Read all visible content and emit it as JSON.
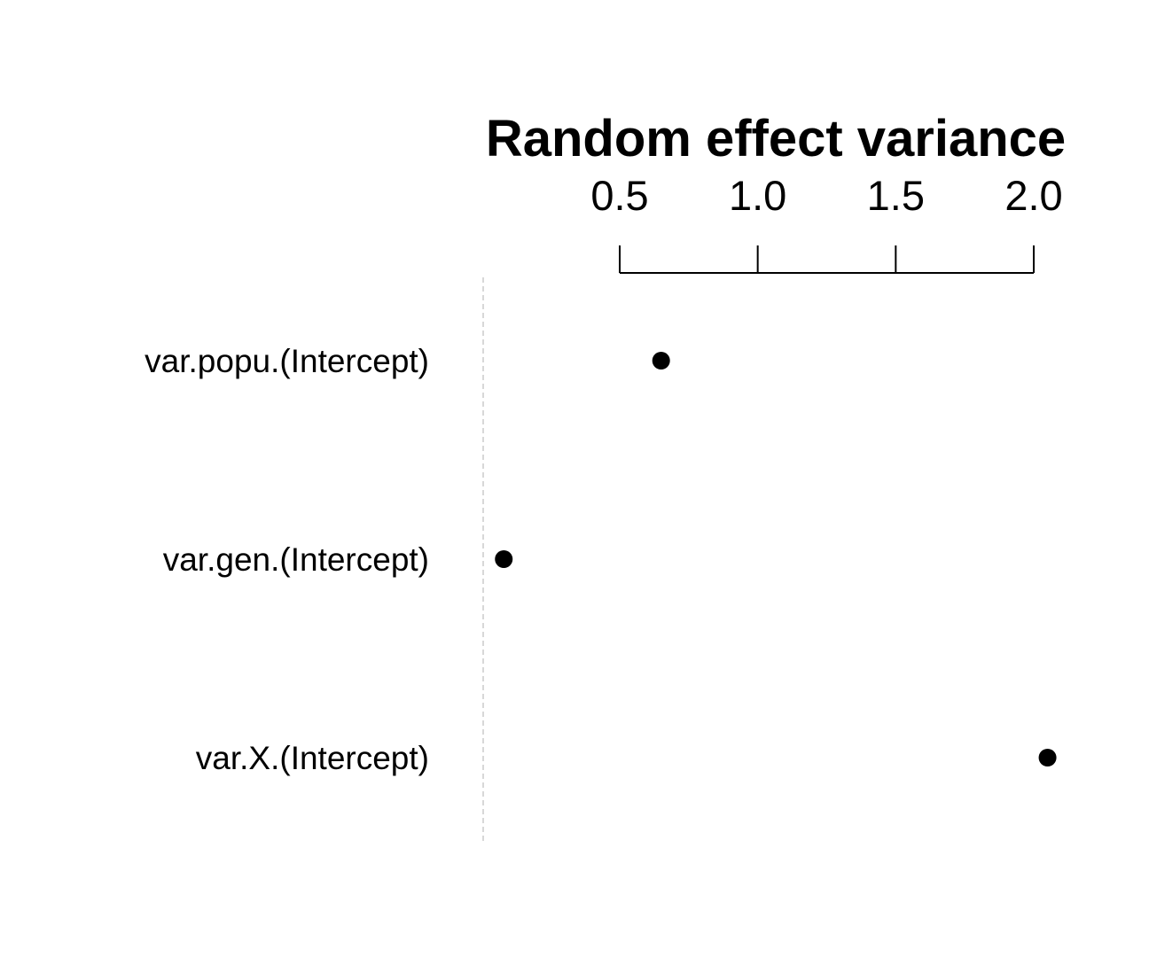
{
  "chart_data": {
    "type": "scatter",
    "title": "Random effect variance",
    "xlabel": "",
    "ylabel": "",
    "x_ticks": [
      0.5,
      1.0,
      1.5,
      2.0
    ],
    "x_tick_labels": [
      "0.5",
      "1.0",
      "1.5",
      "2.0"
    ],
    "xlim": [
      0.35,
      2.15
    ],
    "reference_line": 0,
    "grid": false,
    "legend": "none",
    "categories": [
      "var.popu.(Intercept)",
      "var.gen.(Intercept)",
      "var.X.(Intercept)"
    ],
    "values": [
      0.65,
      0.08,
      2.05
    ],
    "point_color": "#000000"
  }
}
